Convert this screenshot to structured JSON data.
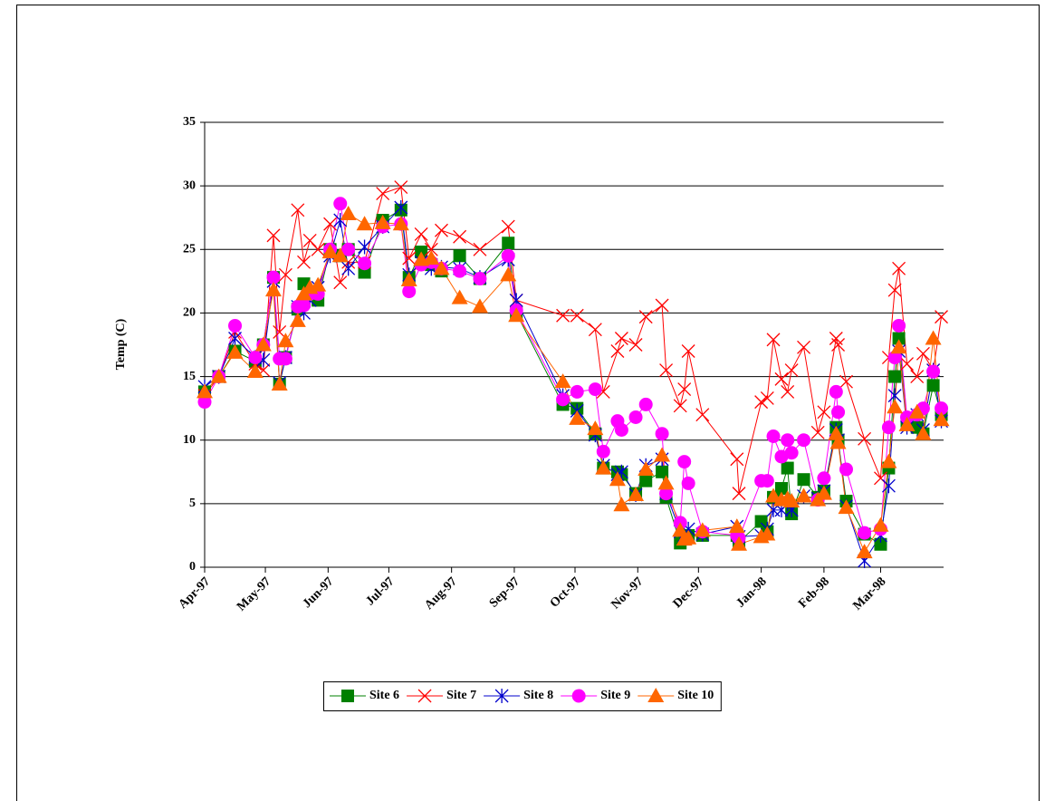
{
  "chart_data": {
    "type": "line",
    "y_label": "Temp (C)",
    "x": [
      "1997-04-01",
      "1997-04-08",
      "1997-04-16",
      "1997-04-26",
      "1997-04-30",
      "1997-05-05",
      "1997-05-08",
      "1997-05-11",
      "1997-05-17",
      "1997-05-20",
      "1997-05-23",
      "1997-05-27",
      "1997-06-02",
      "1997-06-07",
      "1997-06-11",
      "1997-06-19",
      "1997-06-28",
      "1997-07-07",
      "1997-07-11",
      "1997-07-17",
      "1997-07-22",
      "1997-07-27",
      "1997-08-05",
      "1997-08-15",
      "1997-08-29",
      "1997-09-02",
      "1997-09-25",
      "1997-10-02",
      "1997-10-11",
      "1997-10-15",
      "1997-10-22",
      "1997-10-24",
      "1997-10-31",
      "1997-11-05",
      "1997-11-13",
      "1997-11-15",
      "1997-11-22",
      "1997-11-24",
      "1997-11-26",
      "1997-12-03",
      "1997-12-20",
      "1997-12-21",
      "1998-01-01",
      "1998-01-04",
      "1998-01-07",
      "1998-01-11",
      "1998-01-14",
      "1998-01-16",
      "1998-01-22",
      "1998-01-29",
      "1998-02-01",
      "1998-02-07",
      "1998-02-08",
      "1998-02-12",
      "1998-02-21",
      "1998-03-01",
      "1998-03-05",
      "1998-03-08",
      "1998-03-10",
      "1998-03-14",
      "1998-03-19",
      "1998-03-22",
      "1998-03-27",
      "1998-03-31"
    ],
    "xlim": [
      "1997-04-01",
      "1998-04-02"
    ],
    "xticks": [
      {
        "value": "1997-04-01",
        "label": "Apr-97"
      },
      {
        "value": "1997-05-01",
        "label": "May-97"
      },
      {
        "value": "1997-06-01",
        "label": "Jun-97"
      },
      {
        "value": "1997-07-01",
        "label": "Jul-97"
      },
      {
        "value": "1997-08-01",
        "label": "Aug-97"
      },
      {
        "value": "1997-09-01",
        "label": "Sep-97"
      },
      {
        "value": "1997-10-01",
        "label": "Oct-97"
      },
      {
        "value": "1997-11-01",
        "label": "Nov-97"
      },
      {
        "value": "1997-12-01",
        "label": "Dec-97"
      },
      {
        "value": "1998-01-01",
        "label": "Jan-98"
      },
      {
        "value": "1998-02-01",
        "label": "Feb-98"
      },
      {
        "value": "1998-03-01",
        "label": "Mar-98"
      }
    ],
    "ylim": [
      0,
      35
    ],
    "yticks": [
      0,
      5,
      10,
      15,
      20,
      25,
      30,
      35
    ],
    "grid": true,
    "legend": "bottom",
    "series": [
      {
        "name": "Site 6",
        "color": "#008000",
        "marker": "square",
        "values": [
          13.8,
          15.0,
          17.0,
          16.2,
          17.5,
          22.8,
          14.4,
          16.5,
          20.3,
          22.3,
          21.5,
          21.0,
          25.0,
          24.5,
          25.0,
          23.2,
          27.3,
          28.1,
          22.8,
          24.8,
          23.8,
          23.3,
          24.5,
          22.7,
          25.5,
          20.0,
          12.8,
          12.5,
          10.5,
          7.8,
          7.5,
          7.3,
          5.8,
          6.8,
          7.5,
          5.5,
          1.9,
          2.4,
          2.5,
          2.5,
          2.5,
          2.0,
          3.6,
          2.8,
          5.5,
          6.2,
          7.8,
          4.2,
          6.9,
          5.5,
          6.0,
          11.0,
          10.0,
          5.2,
          2.6,
          1.8,
          7.8,
          15.0,
          18.0,
          11.5,
          11.0,
          10.5,
          14.3,
          12.0
        ]
      },
      {
        "name": "Site 7",
        "color": "#ff0000",
        "marker": "x",
        "values": [
          13.5,
          15.0,
          18.5,
          16.0,
          15.5,
          26.1,
          18.5,
          23.0,
          28.1,
          24.0,
          25.7,
          25.0,
          27.0,
          22.4,
          24.0,
          24.0,
          29.4,
          29.9,
          24.3,
          26.2,
          25.0,
          26.5,
          26.0,
          25.0,
          26.8,
          21.0,
          19.8,
          19.8,
          18.7,
          13.8,
          17.0,
          18.0,
          17.5,
          19.7,
          20.6,
          15.5,
          12.7,
          14.0,
          17.0,
          12.0,
          8.5,
          5.8,
          13.0,
          13.3,
          17.9,
          14.8,
          13.8,
          15.5,
          17.3,
          10.6,
          12.2,
          18.0,
          17.5,
          14.6,
          10.1,
          7.0,
          16.5,
          21.8,
          23.5,
          16.0,
          15.0,
          16.8,
          15.5,
          19.7
        ]
      },
      {
        "name": "Site 8",
        "color": "#0000cc",
        "marker": "star",
        "values": [
          14.2,
          15.0,
          18.0,
          16.5,
          16.3,
          22.5,
          14.5,
          16.5,
          20.5,
          20.0,
          21.0,
          22.0,
          24.5,
          27.3,
          23.5,
          25.2,
          26.8,
          28.3,
          23.0,
          24.0,
          23.5,
          23.6,
          23.5,
          22.8,
          24.2,
          21.0,
          13.5,
          12.3,
          10.4,
          8.0,
          7.3,
          7.5,
          5.7,
          8.0,
          8.5,
          5.8,
          2.8,
          2.5,
          3.0,
          2.6,
          3.2,
          2.4,
          2.5,
          3.0,
          4.5,
          4.5,
          5.0,
          4.5,
          5.6,
          5.4,
          6.0,
          10.8,
          10.0,
          4.8,
          0.5,
          2.5,
          6.4,
          13.5,
          17.0,
          11.0,
          12.0,
          10.8,
          15.5,
          11.5
        ]
      },
      {
        "name": "Site 9",
        "color": "#ff00ff",
        "marker": "circle",
        "values": [
          13.0,
          15.0,
          19.0,
          16.5,
          17.5,
          22.8,
          16.4,
          16.4,
          20.5,
          20.6,
          21.5,
          21.5,
          25.0,
          28.6,
          25.0,
          23.9,
          26.8,
          27.0,
          21.7,
          23.8,
          24.0,
          23.5,
          23.3,
          22.7,
          24.5,
          20.2,
          13.2,
          13.8,
          14.0,
          9.1,
          11.5,
          10.8,
          11.8,
          12.8,
          10.5,
          5.8,
          3.5,
          8.3,
          6.6,
          2.8,
          2.5,
          2.3,
          6.8,
          6.8,
          10.3,
          8.7,
          10.0,
          9.0,
          10.0,
          5.3,
          7.0,
          13.8,
          12.2,
          7.7,
          2.7,
          3.0,
          11.0,
          16.5,
          19.0,
          11.8,
          12.0,
          12.5,
          15.4,
          12.5
        ]
      },
      {
        "name": "Site 10",
        "color": "#ff6600",
        "marker": "triangle",
        "values": [
          13.8,
          15.0,
          16.9,
          15.4,
          17.5,
          21.8,
          14.4,
          17.8,
          19.4,
          21.5,
          22.0,
          22.2,
          24.8,
          24.5,
          27.8,
          27.0,
          27.1,
          27.0,
          22.6,
          24.2,
          24.3,
          23.5,
          21.2,
          20.5,
          23.0,
          19.8,
          14.6,
          11.7,
          10.9,
          7.8,
          6.9,
          4.9,
          5.7,
          7.7,
          8.8,
          6.6,
          2.9,
          2.2,
          2.3,
          2.9,
          3.2,
          1.8,
          2.4,
          2.6,
          5.6,
          5.3,
          5.4,
          5.2,
          5.6,
          5.3,
          5.8,
          10.5,
          9.8,
          4.7,
          1.2,
          3.3,
          8.3,
          12.6,
          17.3,
          11.2,
          12.2,
          10.5,
          18.0,
          11.6
        ]
      }
    ]
  }
}
